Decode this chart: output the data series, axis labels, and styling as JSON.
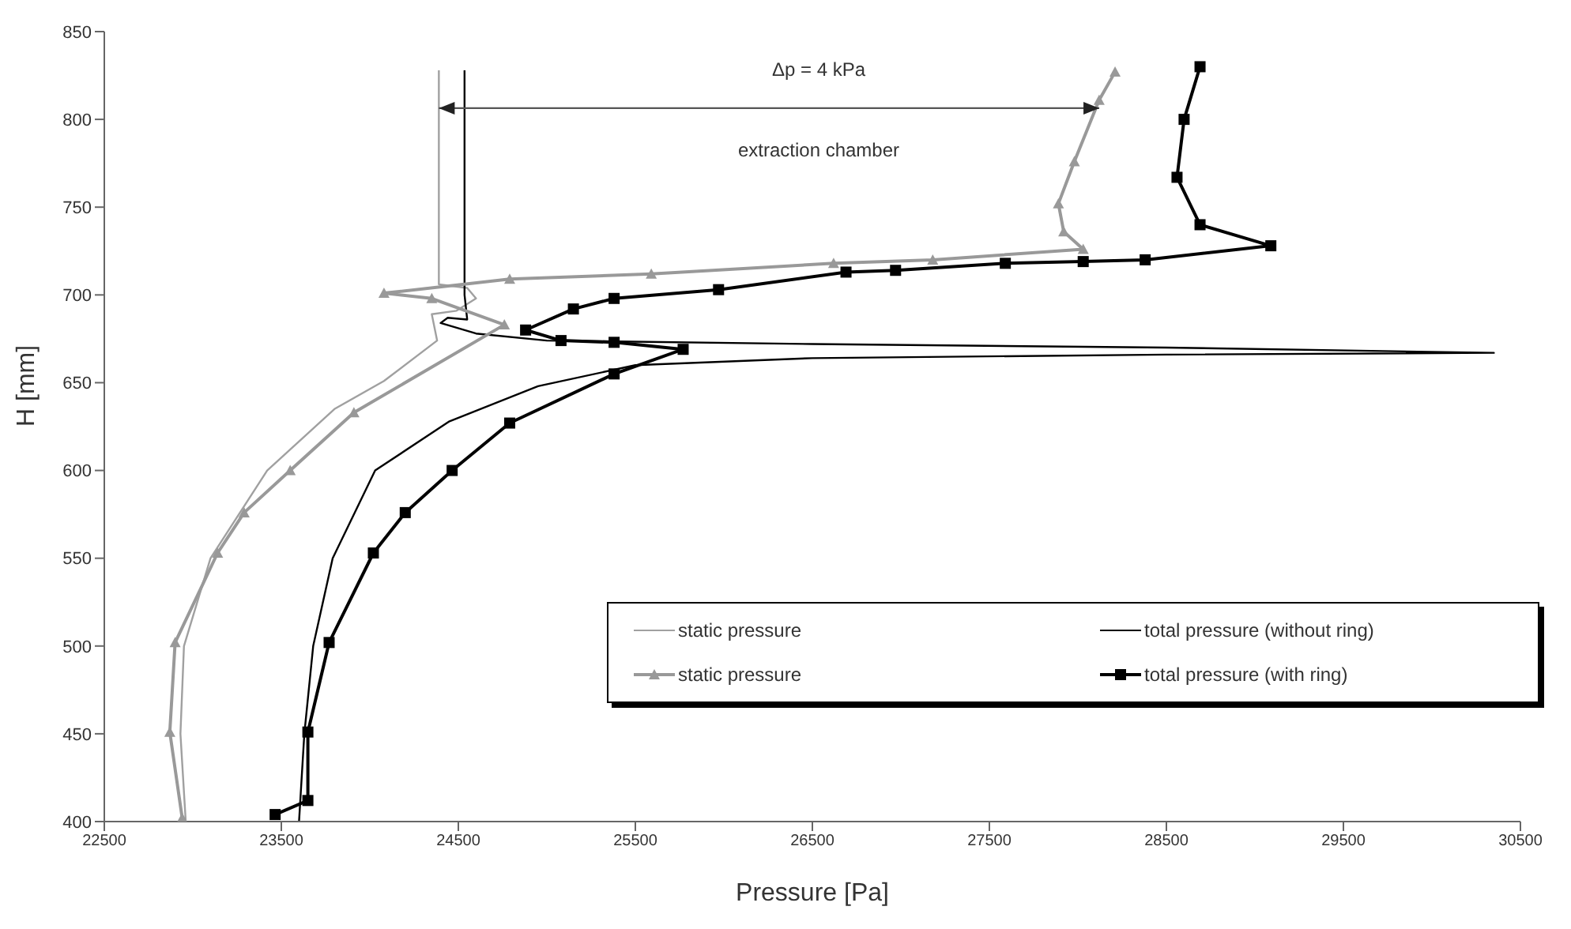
{
  "chart_data": {
    "type": "line",
    "xlabel": "Pressure [Pa]",
    "ylabel": "H [mm]",
    "xlim": [
      22500,
      30500
    ],
    "xticks": [
      22500,
      23500,
      24500,
      25500,
      26500,
      27500,
      28500,
      29500,
      30500
    ],
    "ylim": [
      400,
      850
    ],
    "yticks": [
      400,
      450,
      500,
      550,
      600,
      650,
      700,
      750,
      800,
      850
    ],
    "grid": false,
    "legend": "bottom right",
    "annotations": [
      "Δp = 4 kPa",
      "extraction chamber"
    ],
    "series": [
      {
        "name": "static pressure",
        "color": "#a0a0a0",
        "marker": "none",
        "x": [
          22960,
          22930,
          22950,
          23100,
          23420,
          23800,
          24080,
          24380,
          24350,
          24490,
          24600,
          24550,
          24390,
          24390
        ],
        "values": [
          400,
          450,
          500,
          550,
          600,
          635,
          651,
          674,
          689,
          691,
          698,
          704,
          706,
          828
        ]
      },
      {
        "name": "total pressure (without ring)",
        "color": "#000000",
        "marker": "none",
        "x": [
          23600,
          23630,
          23680,
          23790,
          24030,
          24450,
          24950,
          25500,
          26500,
          28500,
          30350,
          28500,
          26500,
          25000,
          24600,
          24400,
          24440,
          24550,
          24535,
          24535
        ],
        "values": [
          400,
          450,
          500,
          550,
          600,
          628,
          648,
          660,
          664,
          666,
          667,
          670,
          672,
          674,
          678,
          684,
          687,
          686,
          700,
          828
        ]
      },
      {
        "name": "static pressure",
        "color": "#999999",
        "marker": "triangle",
        "x": [
          22940,
          22870,
          22900,
          23140,
          23290,
          23550,
          23910,
          24760,
          24350,
          24080,
          24790,
          25590,
          26620,
          27180,
          28030,
          27920,
          27890,
          27980,
          28120,
          28210
        ],
        "values": [
          402,
          451,
          502,
          553,
          576,
          600,
          633,
          683,
          698,
          701,
          709,
          712,
          718,
          720,
          726,
          736,
          752,
          776,
          811,
          827
        ]
      },
      {
        "name": "total pressure (with ring)",
        "color": "#000000",
        "marker": "square",
        "x": [
          23465,
          23650,
          23650,
          23770,
          24020,
          24200,
          24465,
          24790,
          25380,
          25770,
          25380,
          25080,
          24880,
          25150,
          25380,
          25970,
          26690,
          26970,
          27590,
          28030,
          28380,
          29090,
          28690,
          28560,
          28600,
          28690
        ],
        "values": [
          404,
          412,
          451,
          502,
          553,
          576,
          600,
          627,
          655,
          669,
          673,
          674,
          680,
          692,
          698,
          703,
          713,
          714,
          718,
          719,
          720,
          728,
          740,
          767,
          800,
          830
        ]
      }
    ]
  }
}
